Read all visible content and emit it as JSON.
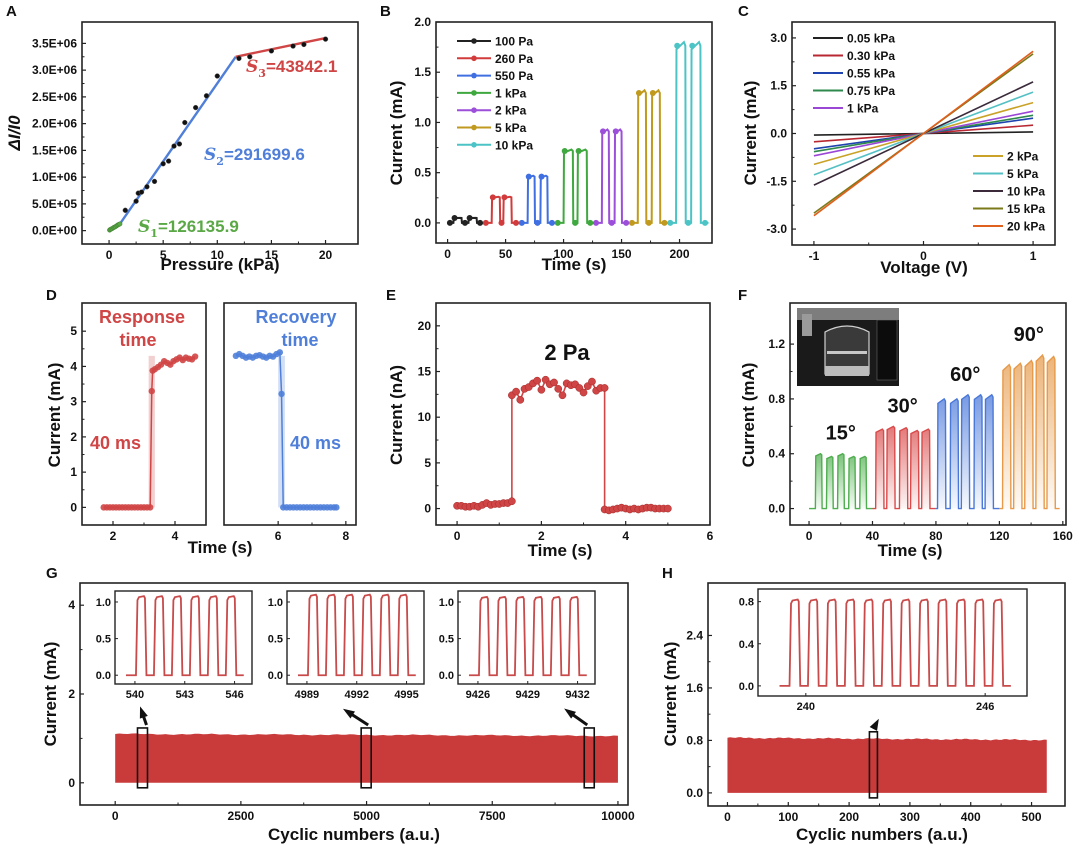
{
  "chart_data": [
    {
      "id": "A",
      "panel_label": "A",
      "type": "scatter",
      "xlabel": "Pressure (kPa)",
      "ylabel": "ΔI/I0",
      "xlim": [
        -2.5,
        23
      ],
      "ylim": [
        -250000,
        3900000
      ],
      "xticks": [
        0,
        5,
        10,
        15,
        20
      ],
      "yticks": [
        0,
        500000,
        1000000,
        1500000,
        2000000,
        2500000,
        3000000,
        3500000
      ],
      "ytick_labels": [
        "0.0E+00",
        "5.0E+05",
        "1.0E+06",
        "1.5E+06",
        "2.0E+06",
        "2.5E+06",
        "3.0E+06",
        "3.5E+06"
      ],
      "points": {
        "x": [
          0.05,
          0.1,
          0.2,
          0.3,
          0.4,
          0.5,
          0.6,
          0.7,
          0.8,
          0.9,
          1.0,
          1.5,
          2.5,
          2.7,
          3.0,
          3.5,
          4.2,
          5.0,
          5.5,
          6.0,
          6.5,
          7.0,
          8.0,
          9.0,
          10.0,
          12.0,
          13.0,
          15.0,
          17.0,
          18.0,
          20.0
        ],
        "y": [
          10000,
          20000,
          30000,
          40000,
          55000,
          65000,
          75000,
          90000,
          105000,
          115000,
          125000,
          380000,
          550000,
          700000,
          720000,
          820000,
          920000,
          1250000,
          1300000,
          1580000,
          1620000,
          2020000,
          2300000,
          2520000,
          2890000,
          3220000,
          3250000,
          3360000,
          3450000,
          3480000,
          3580000
        ]
      },
      "fits": [
        {
          "name": "S1",
          "label": "S",
          "sub": "1",
          "value": "=126135.9",
          "color": "#5aa846",
          "x": [
            0,
            1.0
          ],
          "y": [
            0,
            126000
          ]
        },
        {
          "name": "S2",
          "label": "S",
          "sub": "2",
          "value": "=291699.6",
          "color": "#4f7fd9",
          "x": [
            1.0,
            11.7
          ],
          "y": [
            126000,
            3250000
          ]
        },
        {
          "name": "S3",
          "label": "S",
          "sub": "3",
          "value": "=43842.1",
          "color": "#d04545",
          "x": [
            11.7,
            20
          ],
          "y": [
            3250000,
            3600000
          ]
        }
      ]
    },
    {
      "id": "B",
      "panel_label": "B",
      "type": "line",
      "xlabel": "Time (s)",
      "ylabel": "Current (mA)",
      "xlim": [
        -10,
        228
      ],
      "ylim": [
        -0.2,
        2.0
      ],
      "xticks": [
        0,
        50,
        100,
        150,
        200
      ],
      "yticks": [
        0.0,
        0.5,
        1.0,
        1.5,
        2.0
      ],
      "ytick_labels": [
        "0.0",
        "0.5",
        "1.0",
        "1.5",
        "2.0"
      ],
      "legend": "top-left",
      "series": [
        {
          "name": "100 Pa",
          "color": "#222222",
          "t_start": 0,
          "t_end": 31,
          "pulses": [
            [
              5,
              12
            ],
            [
              18,
              25
            ]
          ],
          "high": 0.05
        },
        {
          "name": "260 Pa",
          "color": "#d23b3b",
          "t_start": 31,
          "t_end": 62,
          "pulses": [
            [
              38,
              45
            ],
            [
              48,
              55
            ]
          ],
          "high": 0.26
        },
        {
          "name": "550 Pa",
          "color": "#3f6fe0",
          "t_start": 62,
          "t_end": 93,
          "pulses": [
            [
              69,
              75
            ],
            [
              80,
              86
            ]
          ],
          "high": 0.47
        },
        {
          "name": "1 kPa",
          "color": "#3fa83f",
          "t_start": 93,
          "t_end": 126,
          "pulses": [
            [
              100,
              108
            ],
            [
              112,
              120
            ]
          ],
          "high": 0.73
        },
        {
          "name": "2 kPa",
          "color": "#9c4fd9",
          "t_start": 126,
          "t_end": 157,
          "pulses": [
            [
              133,
              139
            ],
            [
              144,
              150
            ]
          ],
          "high": 0.93
        },
        {
          "name": "5 kPa",
          "color": "#c09a1e",
          "t_start": 157,
          "t_end": 190,
          "pulses": [
            [
              164,
              171
            ],
            [
              176,
              183
            ]
          ],
          "high": 1.32
        },
        {
          "name": "10 kPa",
          "color": "#4cc4c6",
          "t_start": 190,
          "t_end": 225,
          "pulses": [
            [
              197,
              205
            ],
            [
              210,
              218
            ]
          ],
          "high": 1.8
        }
      ]
    },
    {
      "id": "C",
      "panel_label": "C",
      "type": "line",
      "xlabel": "Voltage (V)",
      "ylabel": "Current (mA)",
      "xlim": [
        -1.2,
        1.2
      ],
      "ylim": [
        -3.5,
        3.5
      ],
      "xticks": [
        -1,
        0,
        1
      ],
      "yticks": [
        -3.0,
        -1.5,
        0.0,
        1.5,
        3.0
      ],
      "ytick_labels": [
        "-3.0",
        "-1.5",
        "0.0",
        "1.5",
        "3.0"
      ],
      "legend": "top-left and bottom-right",
      "series": [
        {
          "name": "0.05 kPa",
          "color": "#222222",
          "slope": 0.05
        },
        {
          "name": "0.30 kPa",
          "color": "#b82832",
          "slope": 0.26
        },
        {
          "name": "0.55 kPa",
          "color": "#1f44b0",
          "slope": 0.48
        },
        {
          "name": "0.75 kPa",
          "color": "#2e8a4c",
          "slope": 0.57
        },
        {
          "name": "1 kPa",
          "color": "#9b47d6",
          "slope": 0.7
        },
        {
          "name": "2 kPa",
          "color": "#c9a227",
          "slope": 0.97
        },
        {
          "name": "5 kPa",
          "color": "#55c0c4",
          "slope": 1.3
        },
        {
          "name": "10 kPa",
          "color": "#3a2a3a",
          "slope": 1.62
        },
        {
          "name": "15 kPa",
          "color": "#7a7a1a",
          "slope": 2.5
        },
        {
          "name": "20 kPa",
          "color": "#e0601e",
          "slope": 2.58
        }
      ]
    },
    {
      "id": "D",
      "panel_label": "D",
      "type": "scatter",
      "xlabel": "Time (s)",
      "ylabel": "Current (mA)",
      "ylim": [
        -0.5,
        5.8
      ],
      "yticks": [
        0,
        1,
        2,
        3,
        4,
        5
      ],
      "ytick_labels": [
        "0",
        "1",
        "2",
        "3",
        "4",
        "5"
      ],
      "subplots": [
        {
          "name": "response",
          "title_line1": "Response",
          "title_line2": "time",
          "annotation": "40 ms",
          "color": "#d04545",
          "xlim": [
            1.0,
            5.0
          ],
          "xticks": [
            2,
            4
          ],
          "x": [
            1.7,
            1.8,
            1.9,
            2.0,
            2.1,
            2.2,
            2.3,
            2.4,
            2.5,
            2.6,
            2.7,
            2.8,
            2.9,
            3.0,
            3.1,
            3.2,
            3.25,
            3.28,
            3.35,
            3.45,
            3.55,
            3.65,
            3.75,
            3.85,
            3.95,
            4.05,
            4.15,
            4.25,
            4.35,
            4.45,
            4.55,
            4.65
          ],
          "y": [
            0,
            0,
            0,
            0,
            0,
            0,
            0,
            0,
            0,
            0,
            0,
            0,
            0,
            0,
            0,
            0,
            3.3,
            3.88,
            3.92,
            3.98,
            4.05,
            4.15,
            4.1,
            4.05,
            4.15,
            4.2,
            4.25,
            4.18,
            4.25,
            4.22,
            4.2,
            4.28
          ],
          "step_x": 3.25,
          "band": [
            3.15,
            3.35
          ]
        },
        {
          "name": "recovery",
          "title_line1": "Recovery",
          "title_line2": "time",
          "annotation": "40 ms",
          "color": "#4f7fd9",
          "xlim": [
            4.4,
            8.3
          ],
          "xticks": [
            6,
            8
          ],
          "x": [
            4.75,
            4.85,
            4.95,
            5.05,
            5.15,
            5.25,
            5.35,
            5.45,
            5.55,
            5.65,
            5.75,
            5.85,
            5.95,
            6.05,
            6.1,
            6.15,
            6.25,
            6.35,
            6.45,
            6.55,
            6.65,
            6.75,
            6.85,
            6.95,
            7.05,
            7.15,
            7.25,
            7.35,
            7.45,
            7.55,
            7.65,
            7.72
          ],
          "y": [
            4.3,
            4.35,
            4.3,
            4.25,
            4.28,
            4.25,
            4.3,
            4.32,
            4.28,
            4.25,
            4.3,
            4.28,
            4.35,
            4.4,
            3.22,
            0,
            0,
            0,
            0,
            0,
            0,
            0,
            0,
            0,
            0,
            0,
            0,
            0,
            0,
            0,
            0,
            0
          ],
          "step_x": 6.12,
          "band": [
            6.0,
            6.2
          ]
        }
      ]
    },
    {
      "id": "E",
      "panel_label": "E",
      "type": "scatter",
      "title": "2 Pa",
      "xlabel": "Time (s)",
      "ylabel": "Current (nA)",
      "xlim": [
        -0.5,
        6
      ],
      "ylim": [
        -1.8,
        22.5
      ],
      "xticks": [
        0,
        2,
        4,
        6
      ],
      "yticks": [
        0,
        5,
        10,
        15,
        20
      ],
      "ytick_labels": [
        "0",
        "5",
        "10",
        "15",
        "20"
      ],
      "color": "#d04545",
      "x": [
        0,
        0.1,
        0.2,
        0.3,
        0.4,
        0.5,
        0.6,
        0.7,
        0.8,
        0.9,
        1.0,
        1.1,
        1.2,
        1.3,
        1.3,
        1.4,
        1.5,
        1.6,
        1.7,
        1.8,
        1.9,
        2.0,
        2.1,
        2.2,
        2.3,
        2.4,
        2.5,
        2.6,
        2.7,
        2.8,
        2.9,
        3.0,
        3.1,
        3.2,
        3.3,
        3.4,
        3.5,
        3.5,
        3.6,
        3.7,
        3.8,
        3.9,
        4.0,
        4.1,
        4.2,
        4.3,
        4.4,
        4.5,
        4.6,
        4.7,
        4.8,
        4.9,
        5.0
      ],
      "y": [
        0.3,
        0.3,
        0.2,
        0.2,
        0.3,
        0.2,
        0.4,
        0.6,
        0.4,
        0.5,
        0.5,
        0.6,
        0.6,
        0.8,
        12.4,
        12.8,
        11.9,
        13.1,
        13.3,
        13.7,
        14.0,
        13.0,
        14.1,
        13.6,
        13.8,
        13.1,
        12.4,
        13.7,
        13.5,
        13.6,
        13.2,
        12.7,
        13.4,
        13.9,
        12.9,
        13.2,
        13.2,
        -0.1,
        -0.2,
        -0.1,
        0.0,
        0.1,
        0.0,
        -0.1,
        0.0,
        -0.1,
        0.0,
        0.1,
        0.1,
        0.0,
        0.0,
        0.0,
        0.0
      ]
    },
    {
      "id": "F",
      "panel_label": "F",
      "type": "area",
      "xlabel": "Time (s)",
      "ylabel": "Current (mA)",
      "xlim": [
        -12,
        162
      ],
      "ylim": [
        -0.12,
        1.5
      ],
      "xticks": [
        0,
        40,
        80,
        120,
        160
      ],
      "yticks": [
        0.0,
        0.4,
        0.8,
        1.2
      ],
      "ytick_labels": [
        "0.0",
        "0.4",
        "0.8",
        "1.2"
      ],
      "inset_image": "photo of bent sensor on test fixture",
      "series": [
        {
          "name": "15°",
          "color": "#4fae4f",
          "t_start": 0,
          "t_end": 40,
          "pulses": [
            [
              4,
              8
            ],
            [
              11,
              15
            ],
            [
              18,
              22
            ],
            [
              25,
              29
            ],
            [
              32,
              36
            ]
          ],
          "highs": [
            0.4,
            0.38,
            0.4,
            0.38,
            0.38
          ]
        },
        {
          "name": "30°",
          "color": "#d94a4a",
          "t_start": 40,
          "t_end": 80,
          "pulses": [
            [
              42,
              47
            ],
            [
              49,
              54
            ],
            [
              57,
              62
            ],
            [
              64,
              69
            ],
            [
              71,
              76
            ]
          ],
          "highs": [
            0.58,
            0.6,
            0.59,
            0.57,
            0.58
          ]
        },
        {
          "name": "60°",
          "color": "#4a78d9",
          "t_start": 80,
          "t_end": 120,
          "pulses": [
            [
              81,
              86
            ],
            [
              89,
              94
            ],
            [
              96,
              101
            ],
            [
              104,
              109
            ],
            [
              111,
              116
            ]
          ],
          "highs": [
            0.8,
            0.8,
            0.83,
            0.83,
            0.83
          ]
        },
        {
          "name": "90°",
          "color": "#e69a4a",
          "t_start": 120,
          "t_end": 158,
          "pulses": [
            [
              122,
              127
            ],
            [
              129,
              134
            ],
            [
              136,
              141
            ],
            [
              143,
              148
            ],
            [
              150,
              155
            ]
          ],
          "highs": [
            1.05,
            1.06,
            1.08,
            1.12,
            1.11
          ]
        }
      ]
    },
    {
      "id": "G",
      "panel_label": "G",
      "type": "area",
      "xlabel": "Cyclic numbers (a.u.)",
      "ylabel": "Current (mA)",
      "xlim": [
        -700,
        10200
      ],
      "ylim": [
        -0.5,
        4.5
      ],
      "xticks": [
        0,
        2500,
        5000,
        7500,
        10000
      ],
      "yticks": [
        0,
        2,
        4
      ],
      "ytick_labels": [
        "0",
        "2",
        "4"
      ],
      "color": "#c93a3a",
      "envelope_level": 1.1,
      "end_x": 10000,
      "highlight_boxes": [
        543,
        4992,
        9429
      ],
      "insets": [
        {
          "name": "inset-540",
          "xticks": [
            540,
            543,
            546
          ],
          "yticks": [
            0.0,
            0.5,
            1.0
          ],
          "ytick_labels": [
            "0.0",
            "0.5",
            "1.0"
          ],
          "pulses": 6,
          "high": 1.08
        },
        {
          "name": "inset-4989",
          "xticks": [
            4989,
            4992,
            4995
          ],
          "yticks": [
            0.0,
            0.5,
            1.0
          ],
          "ytick_labels": [
            "0.0",
            "0.5",
            "1.0"
          ],
          "pulses": 6,
          "high": 1.1
        },
        {
          "name": "inset-9426",
          "xticks": [
            9426,
            9429,
            9432
          ],
          "yticks": [
            0.0,
            0.5,
            1.0
          ],
          "ytick_labels": [
            "0.0",
            "0.5",
            "1.0"
          ],
          "pulses": 6,
          "high": 1.07
        }
      ]
    },
    {
      "id": "H",
      "panel_label": "H",
      "type": "area",
      "xlabel": "Cyclic numbers (a.u.)",
      "ylabel": "Current (mA)",
      "xlim": [
        -32,
        555
      ],
      "ylim": [
        -0.2,
        3.2
      ],
      "xticks": [
        0,
        100,
        200,
        300,
        400,
        500
      ],
      "yticks": [
        0.0,
        0.8,
        1.6,
        2.4
      ],
      "ytick_labels": [
        "0.0",
        "0.8",
        "1.6",
        "2.4"
      ],
      "color": "#c93a3a",
      "envelope_level": 0.84,
      "end_x": 525,
      "highlight_boxes": [
        240
      ],
      "insets": [
        {
          "name": "inset-240",
          "xticks": [
            240,
            246
          ],
          "yticks": [
            0.0,
            0.4,
            0.8
          ],
          "ytick_labels": [
            "0.0",
            "0.4",
            "0.8"
          ],
          "pulses": 12,
          "high": 0.82
        }
      ]
    }
  ]
}
